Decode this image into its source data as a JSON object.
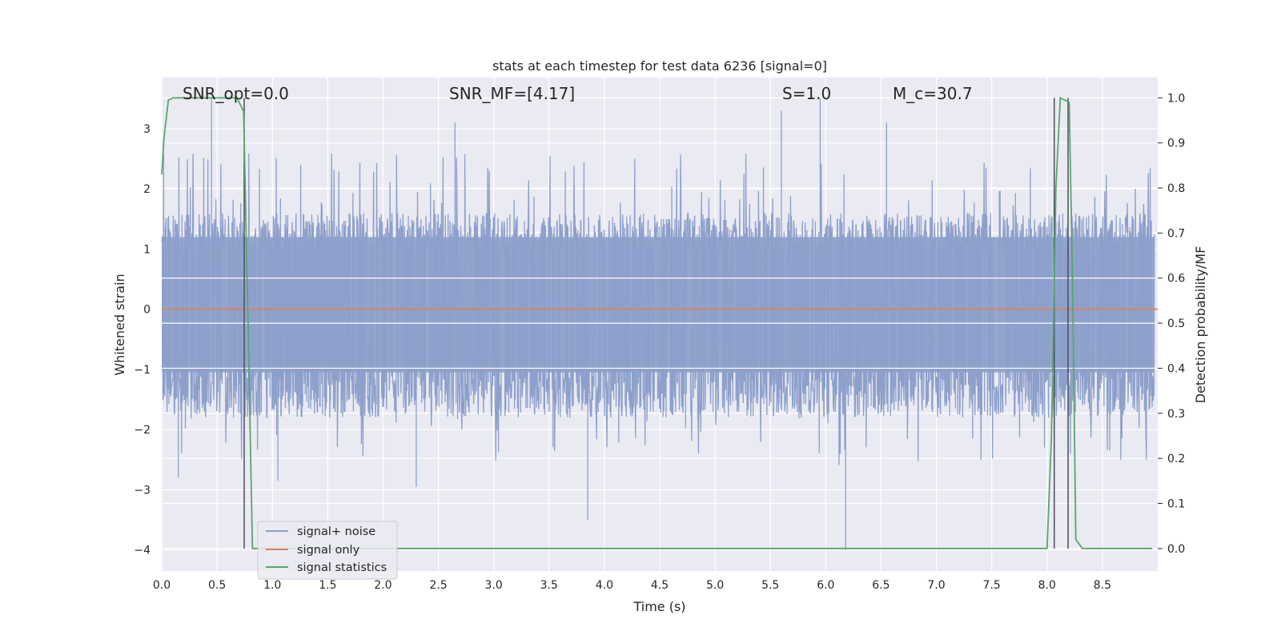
{
  "chart_data": {
    "type": "line",
    "title": "stats at each timestep for test data 6236 [signal=0]",
    "xlabel": "Time (s)",
    "ylabel_left": "Whitened strain",
    "ylabel_right": "Detection probability/MF",
    "xlim": [
      0.0,
      9.0
    ],
    "ylim_left": [
      -4.35,
      3.85
    ],
    "ylim_right": [
      -0.05,
      1.045
    ],
    "x_ticks": [
      0.0,
      0.5,
      1.0,
      1.5,
      2.0,
      2.5,
      3.0,
      3.5,
      4.0,
      4.5,
      5.0,
      5.5,
      6.0,
      6.5,
      7.0,
      7.5,
      8.0,
      8.5
    ],
    "x_tick_labels": [
      "0.0",
      "0.5",
      "1.0",
      "1.5",
      "2.0",
      "2.5",
      "3.0",
      "3.5",
      "4.0",
      "4.5",
      "5.0",
      "5.5",
      "6.0",
      "6.5",
      "7.0",
      "7.5",
      "8.0",
      "8.5"
    ],
    "y_left_ticks": [
      -4,
      -3,
      -2,
      -1,
      0,
      1,
      2,
      3
    ],
    "y_left_tick_labels": [
      "−4",
      "−3",
      "−2",
      "−1",
      "0",
      "1",
      "2",
      "3"
    ],
    "y_right_ticks": [
      0.0,
      0.1,
      0.2,
      0.3,
      0.4,
      0.5,
      0.6,
      0.7,
      0.8,
      0.9,
      1.0
    ],
    "y_right_tick_labels": [
      "0.0",
      "0.1",
      "0.2",
      "0.3",
      "0.4",
      "0.5",
      "0.6",
      "0.7",
      "0.8",
      "0.9",
      "1.0"
    ],
    "grid": true,
    "legend_placement": "lower-left",
    "series": [
      {
        "name": "signal+ noise",
        "color": "#8da0cb",
        "axis": "left",
        "description_values": "noise band roughly between -1.8 and 1.6 with spikes up to 3.5 and down to -4.0",
        "spikes": [
          [
            0.45,
            3.5
          ],
          [
            2.65,
            3.1
          ],
          [
            5.6,
            3.3
          ],
          [
            5.95,
            3.5
          ],
          [
            6.55,
            3.1
          ],
          [
            3.85,
            -3.5
          ],
          [
            6.18,
            -4.0
          ],
          [
            0.15,
            -2.8
          ],
          [
            1.05,
            -2.85
          ],
          [
            2.3,
            -2.95
          ]
        ]
      },
      {
        "name": "signal only",
        "color": "#dd8452",
        "axis": "left",
        "x": [
          0.0,
          9.0
        ],
        "y": [
          0.0,
          0.0
        ]
      },
      {
        "name": "signal statistics",
        "color": "#55a868",
        "axis": "right",
        "x": [
          0.0,
          0.02,
          0.06,
          0.1,
          0.2,
          0.3,
          0.4,
          0.5,
          0.6,
          0.68,
          0.74,
          0.78,
          0.82,
          1.0,
          2.0,
          3.0,
          4.0,
          5.0,
          6.0,
          7.0,
          7.9,
          8.0,
          8.04,
          8.08,
          8.12,
          8.16,
          8.2,
          8.23,
          8.26,
          8.32,
          8.5,
          8.95
        ],
        "y": [
          0.83,
          0.91,
          0.995,
          1.0,
          1.0,
          1.0,
          1.0,
          1.0,
          1.0,
          1.0,
          0.97,
          0.5,
          0.0,
          0.0,
          0.0,
          0.0,
          0.0,
          0.0,
          0.0,
          0.0,
          0.0,
          0.0,
          0.25,
          0.8,
          1.0,
          0.995,
          0.99,
          0.6,
          0.02,
          0.0,
          0.0,
          0.0
        ]
      }
    ],
    "vertical_markers": [
      {
        "x": 0.745,
        "y_top": 1.0,
        "y_bottom": 0.0,
        "color": "#4c4c5c"
      },
      {
        "x": 8.065,
        "y_top": 1.0,
        "y_bottom": 0.0,
        "color": "#4c4c5c"
      },
      {
        "x": 8.19,
        "y_top": 1.0,
        "y_bottom": 0.0,
        "color": "#4c4c5c"
      }
    ],
    "annotations": [
      {
        "id": "snr-opt",
        "text": "SNR_opt=0.0"
      },
      {
        "id": "snr-mf",
        "text": "SNR_MF=[4.17]"
      },
      {
        "id": "s",
        "text": "S=1.0"
      },
      {
        "id": "mc",
        "text": "M_c=30.7"
      }
    ]
  }
}
